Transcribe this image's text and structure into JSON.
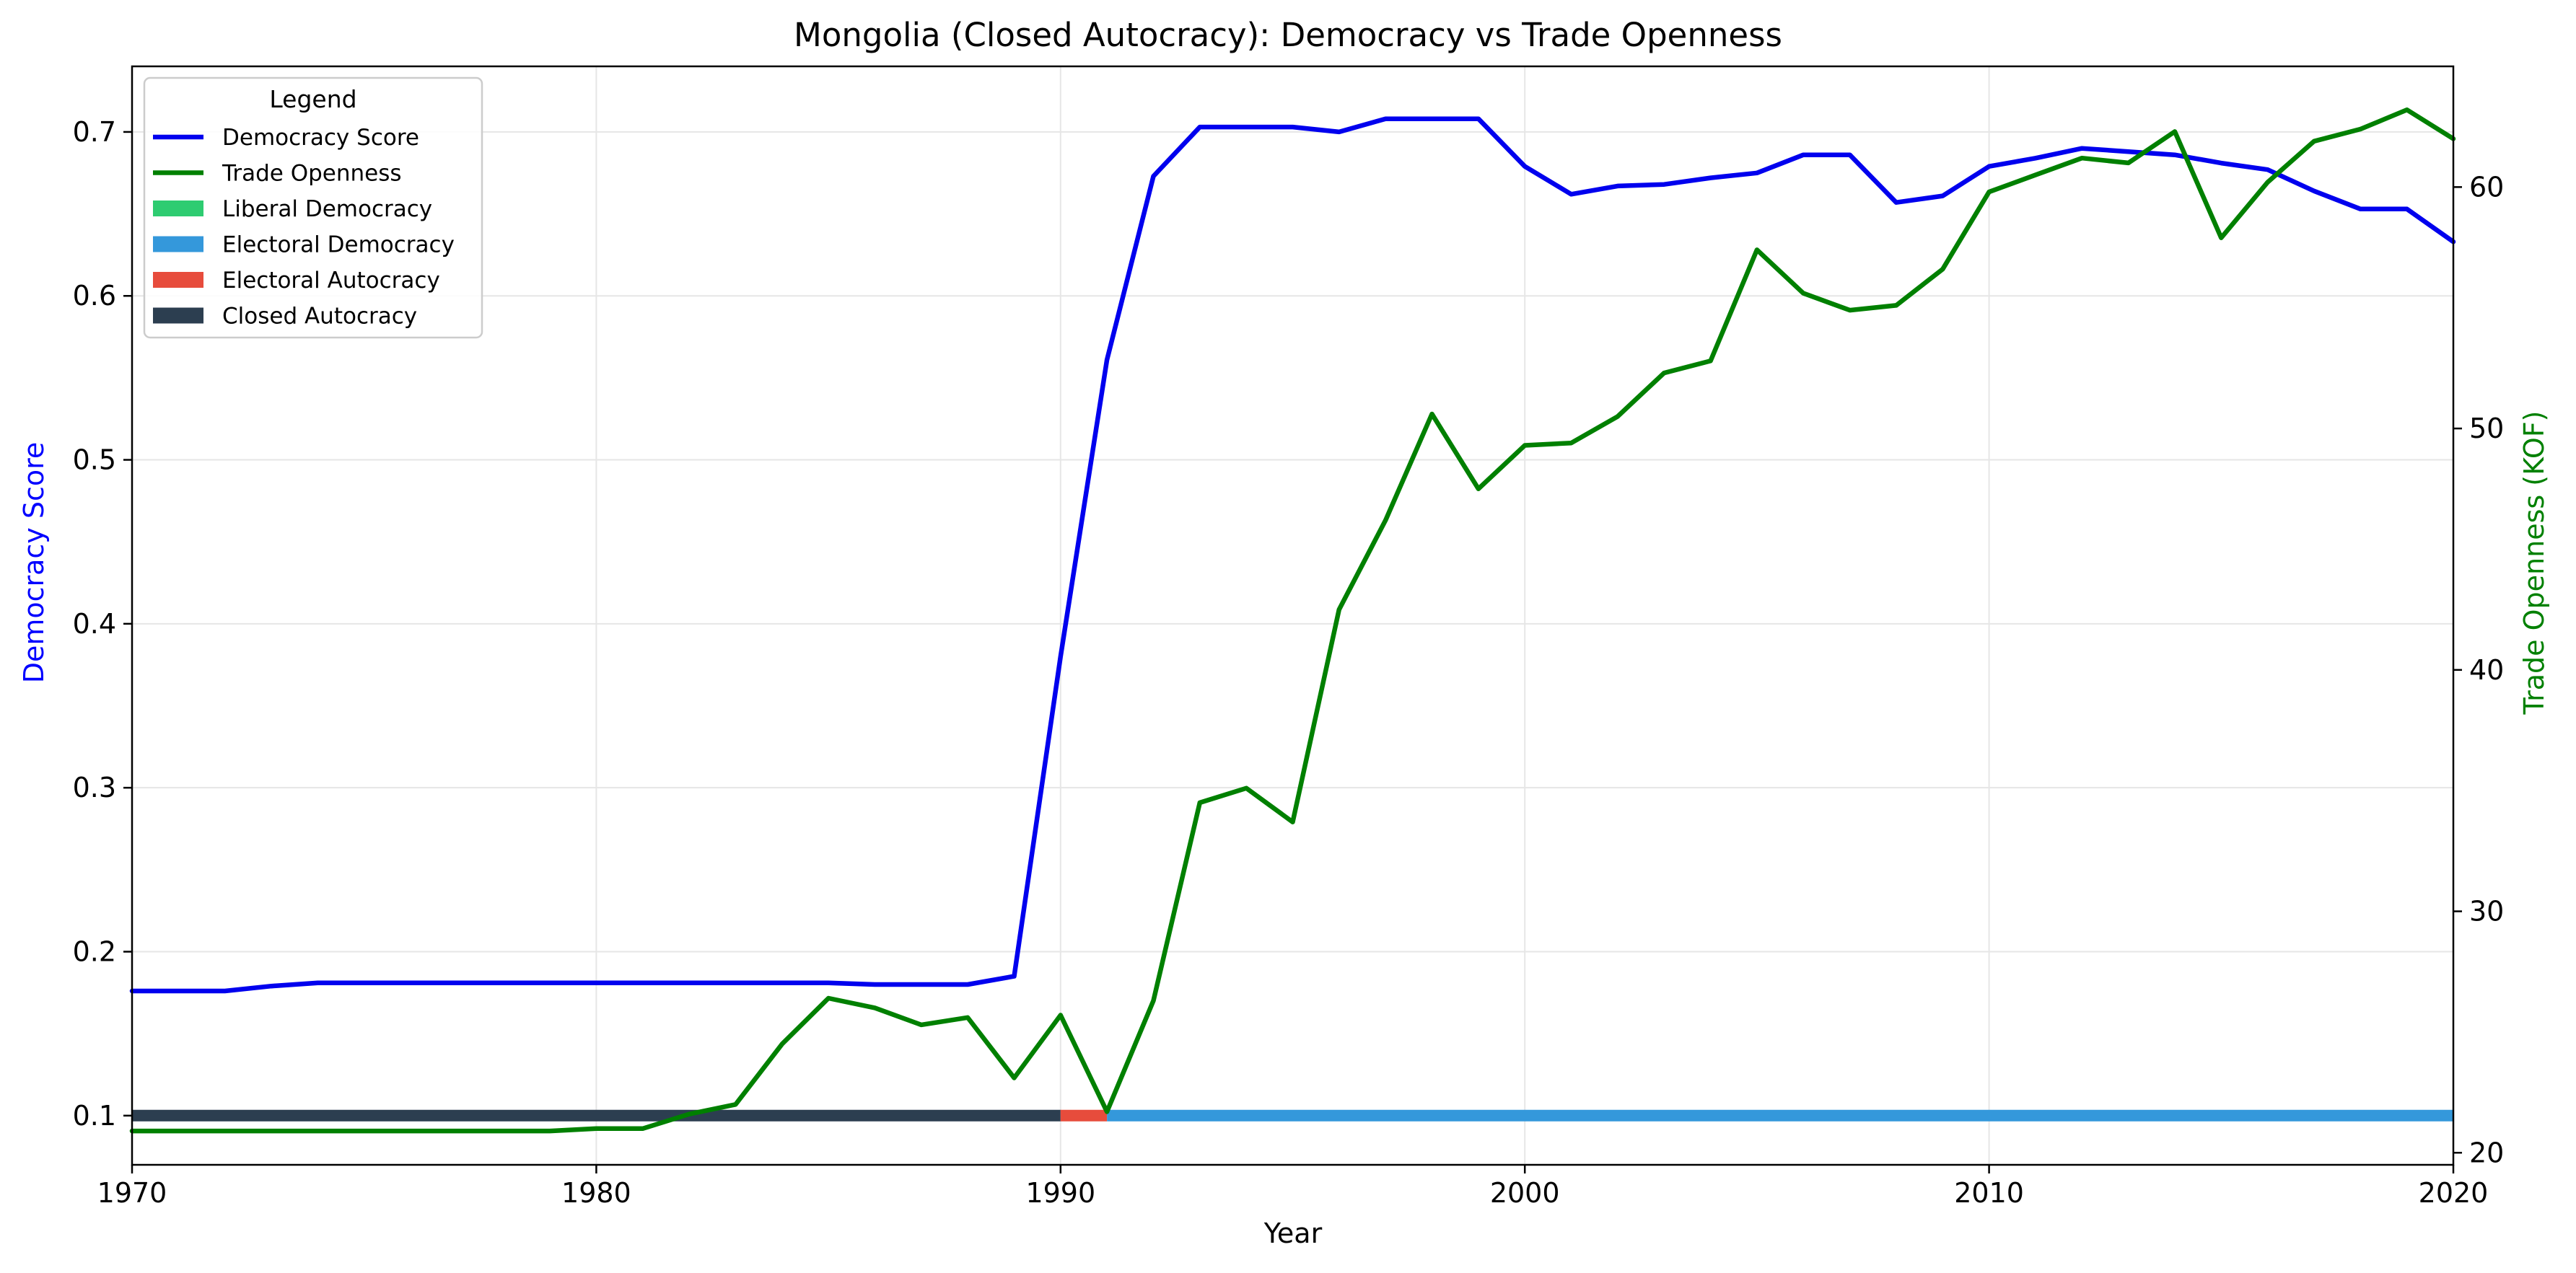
{
  "chart_data": {
    "type": "line",
    "title": "Mongolia (Closed Autocracy): Democracy vs Trade Openness",
    "xlabel": "Year",
    "ylabel_left": "Democracy Score",
    "ylabel_right": "Trade Openness (KOF)",
    "xlim": [
      1970,
      2020
    ],
    "ylim_left": [
      0.07,
      0.74
    ],
    "ylim_right": [
      19.5,
      65
    ],
    "x_ticks": [
      1970,
      1980,
      1990,
      2000,
      2010,
      2020
    ],
    "y_ticks_left": [
      0.1,
      0.2,
      0.3,
      0.4,
      0.5,
      0.6,
      0.7
    ],
    "y_ticks_right": [
      20,
      30,
      40,
      50,
      60
    ],
    "grid": true,
    "legend_placement": "top-left",
    "legend_title": "Legend",
    "colors": {
      "democracy": "#0000ee",
      "trade": "#008000",
      "liberal_democracy": "#2ecc71",
      "electoral_democracy": "#3498db",
      "electoral_autocracy": "#e74c3c",
      "closed_autocracy": "#2c3e50",
      "grid": "#e6e6e6",
      "left_label": "#0000ff",
      "right_label": "#008000"
    },
    "legend_entries": [
      {
        "label": "Democracy Score",
        "kind": "line",
        "color_key": "democracy"
      },
      {
        "label": "Trade Openness",
        "kind": "line",
        "color_key": "trade"
      },
      {
        "label": "Liberal Democracy",
        "kind": "patch",
        "color_key": "liberal_democracy"
      },
      {
        "label": "Electoral Democracy",
        "kind": "patch",
        "color_key": "electoral_democracy"
      },
      {
        "label": "Electoral Autocracy",
        "kind": "patch",
        "color_key": "electoral_autocracy"
      },
      {
        "label": "Closed Autocracy",
        "kind": "patch",
        "color_key": "closed_autocracy"
      }
    ],
    "regime_band_level": 0.1,
    "regime_periods": [
      {
        "regime": "Closed Autocracy",
        "start": 1970,
        "end": 1990,
        "color_key": "closed_autocracy"
      },
      {
        "regime": "Electoral Autocracy",
        "start": 1990,
        "end": 1991,
        "color_key": "electoral_autocracy"
      },
      {
        "regime": "Electoral Democracy",
        "start": 1991,
        "end": 2020,
        "color_key": "electoral_democracy"
      }
    ],
    "series": [
      {
        "name": "Democracy Score",
        "axis": "left",
        "color_key": "democracy",
        "x": [
          1970,
          1971,
          1972,
          1973,
          1974,
          1975,
          1976,
          1977,
          1978,
          1979,
          1980,
          1981,
          1982,
          1983,
          1984,
          1985,
          1986,
          1987,
          1988,
          1989,
          1990,
          1991,
          1992,
          1993,
          1994,
          1995,
          1996,
          1997,
          1998,
          1999,
          2000,
          2001,
          2002,
          2003,
          2004,
          2005,
          2006,
          2007,
          2008,
          2009,
          2010,
          2011,
          2012,
          2013,
          2014,
          2015,
          2016,
          2017,
          2018,
          2019,
          2020
        ],
        "values": [
          0.176,
          0.176,
          0.176,
          0.179,
          0.181,
          0.181,
          0.181,
          0.181,
          0.181,
          0.181,
          0.181,
          0.181,
          0.181,
          0.181,
          0.181,
          0.181,
          0.18,
          0.18,
          0.18,
          0.185,
          0.38,
          0.561,
          0.673,
          0.703,
          0.703,
          0.703,
          0.7,
          0.708,
          0.708,
          0.708,
          0.679,
          0.662,
          0.667,
          0.668,
          0.672,
          0.675,
          0.686,
          0.686,
          0.657,
          0.661,
          0.679,
          0.684,
          0.69,
          0.688,
          0.686,
          0.681,
          0.677,
          0.664,
          0.653,
          0.653,
          0.633
        ]
      },
      {
        "name": "Trade Openness",
        "axis": "right",
        "color_key": "trade",
        "x": [
          1970,
          1971,
          1972,
          1973,
          1974,
          1975,
          1976,
          1977,
          1978,
          1979,
          1980,
          1981,
          1982,
          1983,
          1984,
          1985,
          1986,
          1987,
          1988,
          1989,
          1990,
          1991,
          1992,
          1993,
          1994,
          1995,
          1996,
          1997,
          1998,
          1999,
          2000,
          2001,
          2002,
          2003,
          2004,
          2005,
          2006,
          2007,
          2008,
          2009,
          2010,
          2011,
          2012,
          2013,
          2014,
          2015,
          2016,
          2017,
          2018,
          2019,
          2020
        ],
        "values": [
          20.9,
          20.9,
          20.9,
          20.9,
          20.9,
          20.9,
          20.9,
          20.9,
          20.9,
          20.9,
          21.0,
          21.0,
          21.6,
          22.0,
          24.5,
          26.4,
          26.0,
          25.3,
          25.6,
          23.1,
          25.7,
          21.7,
          26.3,
          34.5,
          35.1,
          33.7,
          42.5,
          46.2,
          50.6,
          47.5,
          49.3,
          49.4,
          50.5,
          52.3,
          52.8,
          57.4,
          55.6,
          54.9,
          55.1,
          56.6,
          59.8,
          60.5,
          61.2,
          61.0,
          62.3,
          57.9,
          60.2,
          61.9,
          62.4,
          63.2,
          62.0
        ]
      }
    ]
  }
}
